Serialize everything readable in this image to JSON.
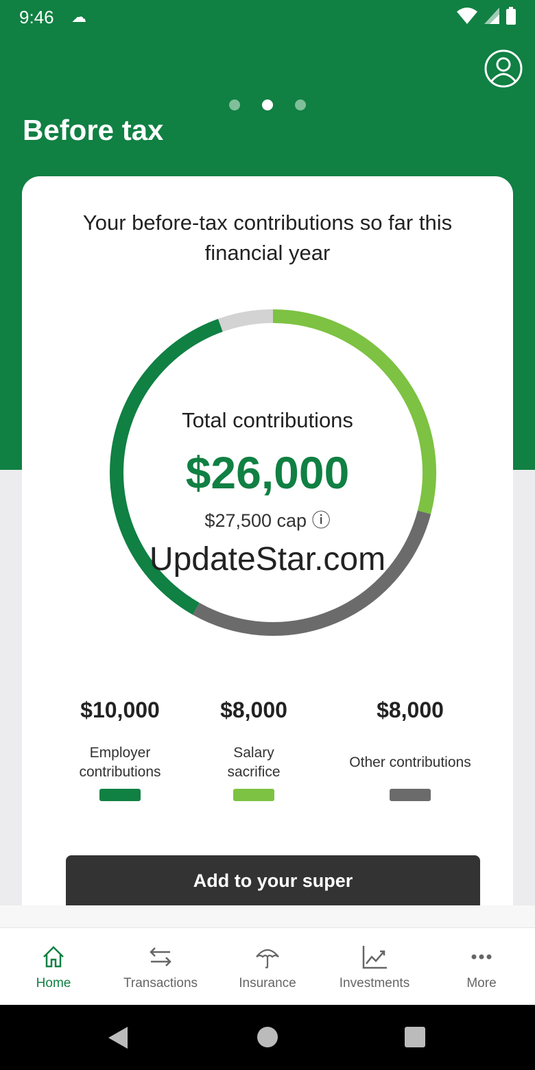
{
  "status_bar": {
    "time": "9:46"
  },
  "header": {
    "title": "Before tax",
    "page_indicator": {
      "count": 3,
      "active": 2
    }
  },
  "card": {
    "title": "Your before-tax contributions so far this financial year",
    "total_label": "Total contributions",
    "total_value": "$26,000",
    "cap_label": "$27,500 cap",
    "watermark": "UpdateStar.com",
    "chart": {
      "cap": 27500,
      "segments": [
        {
          "name": "Salary sacrifice",
          "value": 8000,
          "color": "#7dc242"
        },
        {
          "name": "Other contributions",
          "value": 8000,
          "color": "#6b6b6b"
        },
        {
          "name": "Employer contributions",
          "value": 10000,
          "color": "#108043"
        }
      ],
      "remaining_color": "#d3d3d3"
    },
    "legend": [
      {
        "value": "$10,000",
        "label": "Employer contributions",
        "color": "#108043"
      },
      {
        "value": "$8,000",
        "label": "Salary sacrifice",
        "color": "#7dc242"
      },
      {
        "value": "$8,000",
        "label": "Other contributions",
        "color": "#6b6b6b"
      }
    ],
    "button": "Add to your super"
  },
  "nav": [
    {
      "label": "Home",
      "icon": "home-icon"
    },
    {
      "label": "Transactions",
      "icon": "transfer-icon"
    },
    {
      "label": "Insurance",
      "icon": "umbrella-icon"
    },
    {
      "label": "Investments",
      "icon": "chart-icon"
    },
    {
      "label": "More",
      "icon": "more-icon"
    }
  ]
}
